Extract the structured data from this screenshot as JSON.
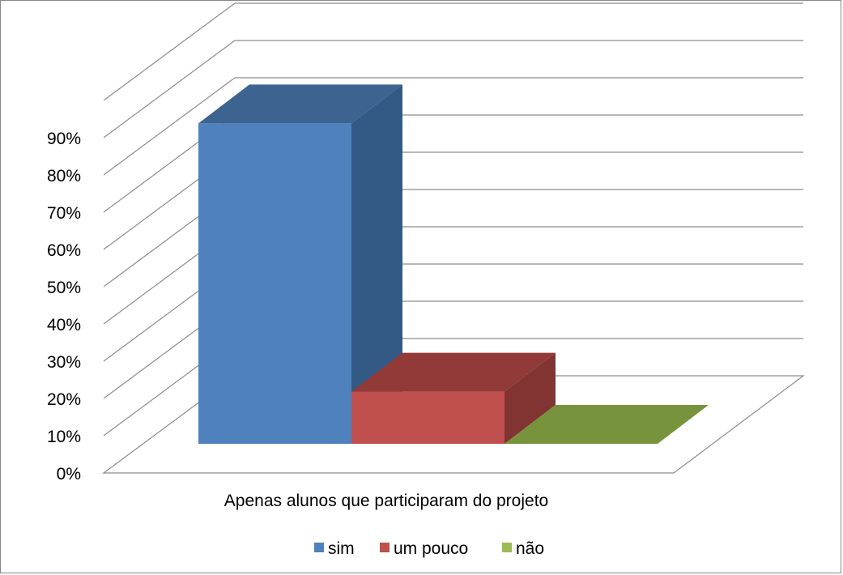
{
  "chart_data": {
    "type": "bar",
    "categories": [
      "Apenas alunos que participaram do projeto"
    ],
    "series": [
      {
        "name": "sim",
        "values": [
          86
        ],
        "color": "#4F81BD",
        "side_color": "#335A84",
        "top_color": "#3D6490"
      },
      {
        "name": "um pouco",
        "values": [
          14
        ],
        "color": "#C0504D",
        "side_color": "#813432",
        "top_color": "#913A38"
      },
      {
        "name": "não",
        "values": [
          0
        ],
        "color": "#9BBB59",
        "side_color": "#6B8A3C",
        "top_color": "#77933C"
      }
    ],
    "yticks": [
      "0%",
      "10%",
      "20%",
      "30%",
      "40%",
      "50%",
      "60%",
      "70%",
      "80%",
      "90%"
    ],
    "ylim": [
      0,
      100
    ],
    "title": "",
    "xlabel": "",
    "ylabel": "",
    "grid": true,
    "legend_position": "bottom",
    "three_d": true
  }
}
